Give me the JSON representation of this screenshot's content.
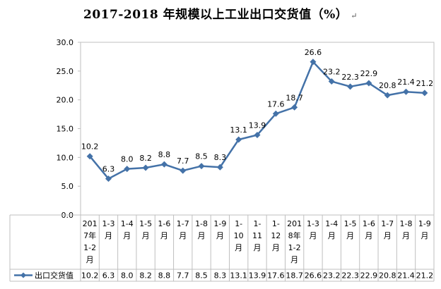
{
  "title": "2017-2018 年规模以上工业出口交货值（%）",
  "title_mark": "↵",
  "chart_data": {
    "type": "line",
    "title": "2017-2018 年规模以上工业出口交货值（%）",
    "xlabel": "",
    "ylabel": "",
    "ylim": [
      0,
      30
    ],
    "yticks": [
      "0.0",
      "5.0",
      "10.0",
      "15.0",
      "20.0",
      "25.0",
      "30.0"
    ],
    "grid": false,
    "legend": "bottom-left, inside data table",
    "categories": [
      [
        "201",
        "7年",
        "1-2",
        "月"
      ],
      [
        "1-3",
        "月"
      ],
      [
        "1-4",
        "月"
      ],
      [
        "1-5",
        "月"
      ],
      [
        "1-6",
        "月"
      ],
      [
        "1-7",
        "月"
      ],
      [
        "1-8",
        "月"
      ],
      [
        "1-9",
        "月"
      ],
      [
        "1-",
        "10",
        "月"
      ],
      [
        "1-",
        "11",
        "月"
      ],
      [
        "1-",
        "12",
        "月"
      ],
      [
        "201",
        "8年",
        "1-2",
        "月"
      ],
      [
        "1-3",
        "月"
      ],
      [
        "1-4",
        "月"
      ],
      [
        "1-5",
        "月"
      ],
      [
        "1-6",
        "月"
      ],
      [
        "1-7",
        "月"
      ],
      [
        "1-8",
        "月"
      ],
      [
        "1-9",
        "月"
      ]
    ],
    "series": [
      {
        "name": "出口交货值",
        "color": "#4472A8",
        "values": [
          10.2,
          6.3,
          8.0,
          8.2,
          8.8,
          7.7,
          8.5,
          8.3,
          13.1,
          13.9,
          17.6,
          18.7,
          26.6,
          23.2,
          22.3,
          22.9,
          20.8,
          21.4,
          21.2
        ],
        "labels": [
          "10.2",
          "6.3",
          "8.0",
          "8.2",
          "8.8",
          "7.7",
          "8.5",
          "8.3",
          "13.1",
          "13.9",
          "17.6",
          "18.7",
          "26.6",
          "23.2",
          "22.3",
          "22.9",
          "20.8",
          "21.4",
          "21.2"
        ]
      }
    ]
  }
}
